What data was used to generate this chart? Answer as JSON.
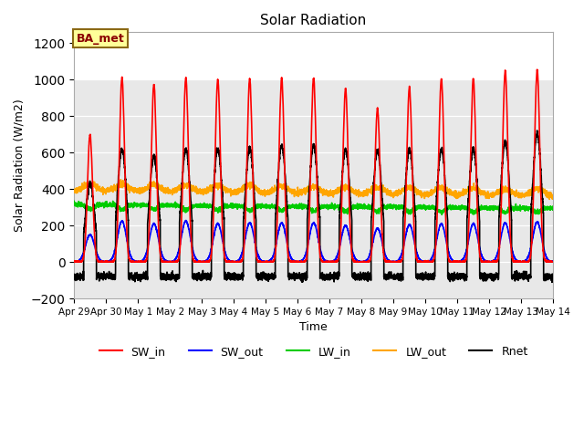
{
  "title": "Solar Radiation",
  "ylabel": "Solar Radiation (W/m2)",
  "xlabel": "Time",
  "ylim": [
    -200,
    1260
  ],
  "yticks": [
    -200,
    0,
    200,
    400,
    600,
    800,
    1000,
    1200
  ],
  "background_color": "#ffffff",
  "plot_bg_color": "#e8e8e8",
  "series_colors": {
    "SW_in": "#ff0000",
    "SW_out": "#0000ff",
    "LW_in": "#00cc00",
    "LW_out": "#ffa500",
    "Rnet": "#000000"
  },
  "legend_label": "BA_met",
  "legend_box_color": "#ffff99",
  "legend_box_edge": "#8b6914",
  "n_days": 15,
  "xtick_labels": [
    "Apr 29",
    "Apr 30",
    "May 1",
    "May 2",
    "May 3",
    "May 4",
    "May 5",
    "May 6",
    "May 7",
    "May 8",
    "May 9",
    "May 10",
    "May 11",
    "May 12",
    "May 13",
    "May 14"
  ],
  "line_width": 1.2,
  "peaks_SW_in": [
    700,
    1010,
    975,
    1010,
    1000,
    1005,
    1010,
    1010,
    950,
    840,
    960,
    1005,
    1005,
    1050,
    1055
  ],
  "peaks_SW_out": [
    150,
    225,
    210,
    225,
    210,
    215,
    215,
    215,
    200,
    185,
    205,
    210,
    210,
    215,
    220
  ],
  "peaks_Rnet": [
    430,
    620,
    580,
    620,
    620,
    625,
    640,
    640,
    620,
    610,
    620,
    620,
    620,
    660,
    700
  ]
}
